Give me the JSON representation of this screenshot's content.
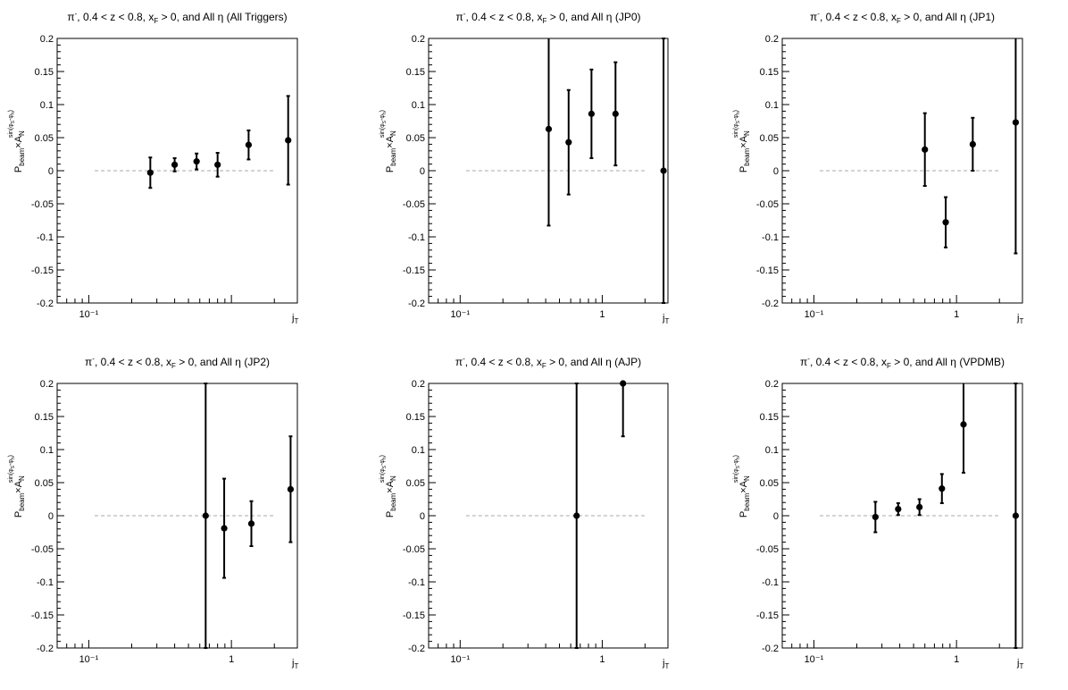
{
  "chart_data": [
    {
      "type": "scatter",
      "title": {
        "species": "π",
        "species_sup": "-",
        "mid": ", 0.4 < z < 0.8, x",
        "mid_sub": "F",
        "tail": " > 0, and All ",
        "eta": "η",
        "trigger": " (All Triggers)"
      },
      "xlabel": {
        "main": "j",
        "sub": "T"
      },
      "ylabel": {
        "p": "P",
        "p_sub": "beam",
        "times": "×A",
        "a_sub": "N",
        "a_sup": "sin(φ",
        "a_sup_s": "S",
        "a_sup_mid": "-φ",
        "a_sup_h": "h",
        "a_sup_end": ")"
      },
      "xscale": "log",
      "xlim": [
        0.06,
        2.9
      ],
      "ylim": [
        -0.2,
        0.2
      ],
      "x_tick_labels": [
        "10⁻¹"
      ],
      "y_ticks": [
        -0.2,
        -0.15,
        -0.1,
        -0.05,
        0,
        0.05,
        0.1,
        0.15,
        0.2
      ],
      "y_tick_labels": [
        "-0.2",
        "-0.15",
        "-0.1",
        "-0.05",
        "0",
        "0.05",
        "0.1",
        "0.15",
        "0.2"
      ],
      "zero_line_x": [
        0.11,
        2.0
      ],
      "points": [
        {
          "x": 0.27,
          "y": -0.003,
          "err": 0.023
        },
        {
          "x": 0.4,
          "y": 0.009,
          "err": 0.01
        },
        {
          "x": 0.57,
          "y": 0.014,
          "err": 0.012
        },
        {
          "x": 0.8,
          "y": 0.009,
          "err": 0.018
        },
        {
          "x": 1.32,
          "y": 0.039,
          "err": 0.022
        },
        {
          "x": 2.5,
          "y": 0.046,
          "err": 0.067
        }
      ]
    },
    {
      "type": "scatter",
      "title": {
        "species": "π",
        "species_sup": "-",
        "mid": ", 0.4 < z < 0.8, x",
        "mid_sub": "F",
        "tail": " > 0, and All ",
        "eta": "η",
        "trigger": " (JP0)"
      },
      "xlabel": {
        "main": "j",
        "sub": "T"
      },
      "ylabel": {
        "p": "P",
        "p_sub": "beam",
        "times": "×A",
        "a_sub": "N",
        "a_sup": "sin(φ",
        "a_sup_s": "S",
        "a_sup_mid": "-φ",
        "a_sup_h": "h",
        "a_sup_end": ")"
      },
      "xscale": "log",
      "xlim": [
        0.06,
        2.9
      ],
      "ylim": [
        -0.2,
        0.2
      ],
      "x_tick_labels": [
        "10⁻¹",
        "1"
      ],
      "y_ticks": [
        -0.2,
        -0.15,
        -0.1,
        -0.05,
        0,
        0.05,
        0.1,
        0.15,
        0.2
      ],
      "y_tick_labels": [
        "-0.2",
        "-0.15",
        "-0.1",
        "-0.05",
        "0",
        "0.05",
        "0.1",
        "0.15",
        "0.2"
      ],
      "zero_line_x": [
        0.11,
        2.0
      ],
      "points": [
        {
          "x": 0.42,
          "y": 0.063,
          "err": 0.146
        },
        {
          "x": 0.58,
          "y": 0.043,
          "err": 0.079
        },
        {
          "x": 0.84,
          "y": 0.086,
          "err": 0.067
        },
        {
          "x": 1.24,
          "y": 0.086,
          "err": 0.078
        },
        {
          "x": 2.7,
          "y": 0.0,
          "err": 0.2
        }
      ]
    },
    {
      "type": "scatter",
      "title": {
        "species": "π",
        "species_sup": "-",
        "mid": ", 0.4 < z < 0.8, x",
        "mid_sub": "F",
        "tail": " > 0, and All ",
        "eta": "η",
        "trigger": " (JP1)"
      },
      "xlabel": {
        "main": "j",
        "sub": "T"
      },
      "ylabel": {
        "p": "P",
        "p_sub": "beam",
        "times": "×A",
        "a_sub": "N",
        "a_sup": "sin(φ",
        "a_sup_s": "S",
        "a_sup_mid": "-φ",
        "a_sup_h": "h",
        "a_sup_end": ")"
      },
      "xscale": "log",
      "xlim": [
        0.06,
        2.9
      ],
      "ylim": [
        -0.2,
        0.2
      ],
      "x_tick_labels": [
        "10⁻¹",
        "1"
      ],
      "y_ticks": [
        -0.2,
        -0.15,
        -0.1,
        -0.05,
        0,
        0.05,
        0.1,
        0.15,
        0.2
      ],
      "y_tick_labels": [
        "-0.2",
        "-0.15",
        "-0.1",
        "-0.05",
        "0",
        "0.05",
        "0.1",
        "0.15",
        "0.2"
      ],
      "zero_line_x": [
        0.11,
        2.0
      ],
      "points": [
        {
          "x": 0.6,
          "y": 0.032,
          "err": 0.055
        },
        {
          "x": 0.84,
          "y": -0.078,
          "err": 0.038
        },
        {
          "x": 1.3,
          "y": 0.04,
          "err": 0.04
        },
        {
          "x": 2.6,
          "y": 0.073,
          "err": 0.198
        }
      ]
    },
    {
      "type": "scatter",
      "title": {
        "species": "π",
        "species_sup": "-",
        "mid": ", 0.4 < z < 0.8, x",
        "mid_sub": "F",
        "tail": " > 0, and All ",
        "eta": "η",
        "trigger": " (JP2)"
      },
      "xlabel": {
        "main": "j",
        "sub": "T"
      },
      "ylabel": {
        "p": "P",
        "p_sub": "beam",
        "times": "×A",
        "a_sub": "N",
        "a_sup": "sin(φ",
        "a_sup_s": "S",
        "a_sup_mid": "-φ",
        "a_sup_h": "h",
        "a_sup_end": ")"
      },
      "xscale": "log",
      "xlim": [
        0.06,
        2.9
      ],
      "ylim": [
        -0.2,
        0.2
      ],
      "x_tick_labels": [
        "10⁻¹",
        "1"
      ],
      "y_ticks": [
        -0.2,
        -0.15,
        -0.1,
        -0.05,
        0,
        0.05,
        0.1,
        0.15,
        0.2
      ],
      "y_tick_labels": [
        "-0.2",
        "-0.15",
        "-0.1",
        "-0.05",
        "0",
        "0.05",
        "0.1",
        "0.15",
        "0.2"
      ],
      "zero_line_x": [
        0.11,
        2.0
      ],
      "points": [
        {
          "x": 0.66,
          "y": 0.0,
          "err": 0.2
        },
        {
          "x": 0.89,
          "y": -0.019,
          "err": 0.075
        },
        {
          "x": 1.38,
          "y": -0.012,
          "err": 0.034
        },
        {
          "x": 2.6,
          "y": 0.04,
          "err": 0.08
        }
      ]
    },
    {
      "type": "scatter",
      "title": {
        "species": "π",
        "species_sup": "-",
        "mid": ", 0.4 < z < 0.8, x",
        "mid_sub": "F",
        "tail": " > 0, and All ",
        "eta": "η",
        "trigger": " (AJP)"
      },
      "xlabel": {
        "main": "j",
        "sub": "T"
      },
      "ylabel": {
        "p": "P",
        "p_sub": "beam",
        "times": "×A",
        "a_sub": "N",
        "a_sup": "sin(φ",
        "a_sup_s": "S",
        "a_sup_mid": "-φ",
        "a_sup_h": "h",
        "a_sup_end": ")"
      },
      "xscale": "log",
      "xlim": [
        0.06,
        2.9
      ],
      "ylim": [
        -0.2,
        0.2
      ],
      "x_tick_labels": [
        "10⁻¹",
        "1"
      ],
      "y_ticks": [
        -0.2,
        -0.15,
        -0.1,
        -0.05,
        0,
        0.05,
        0.1,
        0.15,
        0.2
      ],
      "y_tick_labels": [
        "-0.2",
        "-0.15",
        "-0.1",
        "-0.05",
        "0",
        "0.05",
        "0.1",
        "0.15",
        "0.2"
      ],
      "zero_line_x": [
        0.11,
        2.0
      ],
      "points": [
        {
          "x": 0.66,
          "y": 0.0,
          "err": 0.2
        },
        {
          "x": 1.4,
          "y": 0.2,
          "err": 0.08
        }
      ]
    },
    {
      "type": "scatter",
      "title": {
        "species": "π",
        "species_sup": "-",
        "mid": ", 0.4 < z < 0.8, x",
        "mid_sub": "F",
        "tail": " > 0, and All ",
        "eta": "η",
        "trigger": " (VPDMB)"
      },
      "xlabel": {
        "main": "j",
        "sub": "T"
      },
      "ylabel": {
        "p": "P",
        "p_sub": "beam",
        "times": "×A",
        "a_sub": "N",
        "a_sup": "sin(φ",
        "a_sup_s": "S",
        "a_sup_mid": "-φ",
        "a_sup_h": "h",
        "a_sup_end": ")"
      },
      "xscale": "log",
      "xlim": [
        0.06,
        2.9
      ],
      "ylim": [
        -0.2,
        0.2
      ],
      "x_tick_labels": [
        "10⁻¹",
        "1"
      ],
      "y_ticks": [
        -0.2,
        -0.15,
        -0.1,
        -0.05,
        0,
        0.05,
        0.1,
        0.15,
        0.2
      ],
      "y_tick_labels": [
        "-0.2",
        "-0.15",
        "-0.1",
        "-0.05",
        "0",
        "0.05",
        "0.1",
        "0.15",
        "0.2"
      ],
      "zero_line_x": [
        0.11,
        2.0
      ],
      "points": [
        {
          "x": 0.27,
          "y": -0.002,
          "err": 0.023
        },
        {
          "x": 0.39,
          "y": 0.01,
          "err": 0.009
        },
        {
          "x": 0.55,
          "y": 0.013,
          "err": 0.012
        },
        {
          "x": 0.79,
          "y": 0.041,
          "err": 0.022
        },
        {
          "x": 1.12,
          "y": 0.138,
          "err": 0.073
        },
        {
          "x": 2.6,
          "y": 0.0,
          "err": 0.2
        }
      ]
    }
  ]
}
